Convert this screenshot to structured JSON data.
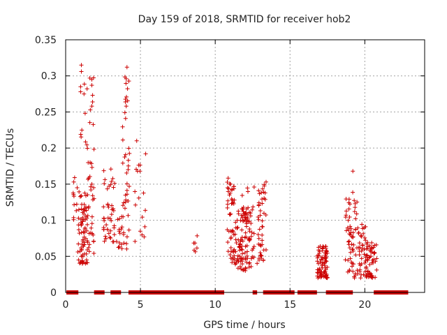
{
  "chart_data": {
    "type": "scatter",
    "title": "Day 159 of 2018, SRMTID for receiver hob2",
    "xlabel": "GPS time / hours",
    "ylabel": "SRMTID / TECUs",
    "xlim": [
      0,
      24
    ],
    "ylim": [
      0,
      0.35
    ],
    "xticks": [
      0,
      5,
      10,
      15,
      20
    ],
    "xtick_labels": [
      "0",
      "5",
      "10",
      "15",
      "20"
    ],
    "yticks": [
      0,
      0.05,
      0.1,
      0.15,
      0.2,
      0.25,
      0.3,
      0.35
    ],
    "ytick_labels": [
      "0",
      "0.05",
      "0.1",
      "0.15",
      "0.2",
      "0.25",
      "0.3",
      "0.35"
    ],
    "grid": true,
    "marker": "plus",
    "series_color": "#cc0000",
    "zero_runs": [
      [
        0.05,
        0.85
      ],
      [
        1.9,
        2.6
      ],
      [
        3.0,
        3.7
      ],
      [
        4.2,
        10.6
      ],
      [
        12.5,
        12.8
      ],
      [
        13.2,
        15.3
      ],
      [
        15.5,
        16.8
      ],
      [
        17.4,
        19.2
      ],
      [
        20.6,
        22.9
      ]
    ],
    "clusters": [
      {
        "x": [
          0.5,
          0.8
        ],
        "y": [
          0.09,
          0.16
        ],
        "n": 10
      },
      {
        "x": [
          0.8,
          1.4
        ],
        "y": [
          0.04,
          0.14
        ],
        "n": 70
      },
      {
        "x": [
          1.4,
          1.9
        ],
        "y": [
          0.04,
          0.2
        ],
        "n": 40
      },
      {
        "x": [
          1.0,
          1.9
        ],
        "y": [
          0.2,
          0.3
        ],
        "n": 14
      },
      {
        "x": [
          2.5,
          3.3
        ],
        "y": [
          0.07,
          0.18
        ],
        "n": 45
      },
      {
        "x": [
          3.4,
          3.9
        ],
        "y": [
          0.06,
          0.11
        ],
        "n": 18
      },
      {
        "x": [
          3.8,
          4.3
        ],
        "y": [
          0.06,
          0.24
        ],
        "n": 28
      },
      {
        "x": [
          3.9,
          4.3
        ],
        "y": [
          0.24,
          0.3
        ],
        "n": 9
      },
      {
        "x": [
          4.6,
          5.4
        ],
        "y": [
          0.07,
          0.21
        ],
        "n": 16
      },
      {
        "x": [
          8.5,
          8.8
        ],
        "y": [
          0.05,
          0.08
        ],
        "n": 6
      },
      {
        "x": [
          10.8,
          11.3
        ],
        "y": [
          0.04,
          0.16
        ],
        "n": 50
      },
      {
        "x": [
          11.3,
          12.6
        ],
        "y": [
          0.03,
          0.12
        ],
        "n": 110
      },
      {
        "x": [
          11.8,
          12.2
        ],
        "y": [
          0.1,
          0.16
        ],
        "n": 14
      },
      {
        "x": [
          12.8,
          13.4
        ],
        "y": [
          0.04,
          0.15
        ],
        "n": 45
      },
      {
        "x": [
          16.8,
          17.5
        ],
        "y": [
          0.02,
          0.065
        ],
        "n": 80
      },
      {
        "x": [
          18.7,
          19.5
        ],
        "y": [
          0.02,
          0.15
        ],
        "n": 60
      },
      {
        "x": [
          19.5,
          20.1
        ],
        "y": [
          0.02,
          0.1
        ],
        "n": 40
      },
      {
        "x": [
          20.1,
          20.8
        ],
        "y": [
          0.02,
          0.07
        ],
        "n": 55
      }
    ],
    "points": [
      [
        1.05,
        0.315
      ],
      [
        1.05,
        0.306
      ],
      [
        1.0,
        0.285
      ],
      [
        1.0,
        0.278
      ],
      [
        1.75,
        0.295
      ],
      [
        1.75,
        0.287
      ],
      [
        1.8,
        0.264
      ],
      [
        1.75,
        0.258
      ],
      [
        4.1,
        0.312
      ],
      [
        4.05,
        0.296
      ],
      [
        4.0,
        0.264
      ],
      [
        4.05,
        0.258
      ],
      [
        5.35,
        0.192
      ],
      [
        4.75,
        0.21
      ],
      [
        0.6,
        0.159
      ],
      [
        19.2,
        0.168
      ],
      [
        12.6,
        0.146
      ],
      [
        13.4,
        0.153
      ],
      [
        17.4,
        0.061
      ],
      [
        1.65,
        0.253
      ]
    ]
  }
}
